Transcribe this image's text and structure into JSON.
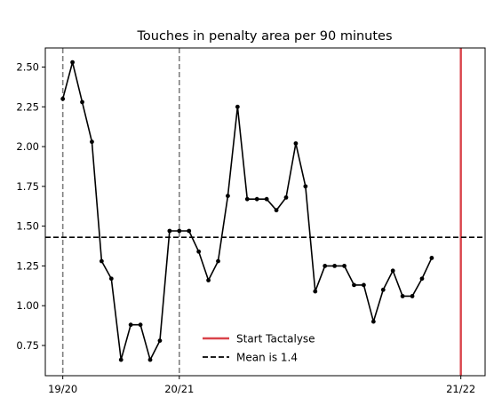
{
  "chart_data": {
    "type": "line",
    "title": "Touches in penalty area per 90 minutes",
    "xlabel": "",
    "ylabel": "",
    "x": [
      0,
      1,
      2,
      3,
      4,
      5,
      6,
      7,
      8,
      9,
      10,
      11,
      12,
      13,
      14,
      15,
      16,
      17,
      18,
      19,
      20,
      21,
      22,
      23,
      24,
      25,
      26,
      27,
      28,
      29,
      30,
      31,
      32,
      33,
      34,
      35,
      36,
      37,
      38
    ],
    "series": [
      {
        "values": [
          2.3,
          2.53,
          2.28,
          2.03,
          1.28,
          1.17,
          0.66,
          0.88,
          0.88,
          0.66,
          0.78,
          1.47,
          1.47,
          1.47,
          1.34,
          1.16,
          1.28,
          1.69,
          2.25,
          1.67,
          1.67,
          1.67,
          1.6,
          1.68,
          2.02,
          1.75,
          1.09,
          1.25,
          1.25,
          1.25,
          1.13,
          1.13,
          0.9,
          1.1,
          1.22,
          1.06,
          1.06,
          1.17,
          1.3
        ],
        "color": "#000000",
        "marker": "dot"
      }
    ],
    "xlim": [
      -1.8,
      43.5
    ],
    "ylim": [
      0.56,
      2.62
    ],
    "x_ticks": [
      {
        "value": 0,
        "label": "19/20"
      },
      {
        "value": 12,
        "label": "20/21"
      },
      {
        "value": 41,
        "label": "21/22"
      }
    ],
    "y_ticks": [
      {
        "value": 0.75,
        "label": "0.75"
      },
      {
        "value": 1.0,
        "label": "1.00"
      },
      {
        "value": 1.25,
        "label": "1.25"
      },
      {
        "value": 1.5,
        "label": "1.50"
      },
      {
        "value": 1.75,
        "label": "1.75"
      },
      {
        "value": 2.0,
        "label": "2.00"
      },
      {
        "value": 2.25,
        "label": "2.25"
      },
      {
        "value": 2.5,
        "label": "2.50"
      }
    ],
    "season_lines": [
      0,
      12,
      41
    ],
    "season_line_color": "#808080",
    "start_line": {
      "x": 41,
      "label": "Start Tactalyse",
      "color": "#d9434a"
    },
    "mean_line": {
      "value": 1.43,
      "label": "Mean is 1.4",
      "color": "#000000"
    },
    "legend_position": "lower center",
    "grid": false
  }
}
